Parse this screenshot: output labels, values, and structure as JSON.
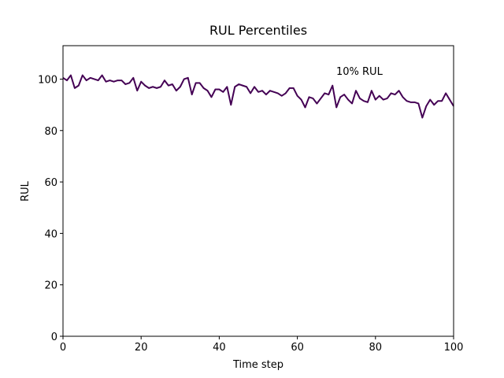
{
  "chart_data": {
    "type": "line",
    "title": "RUL Percentiles",
    "xlabel": "Time step",
    "ylabel": "RUL",
    "annotation": "10% RUL",
    "x": [
      0,
      1,
      2,
      3,
      4,
      5,
      6,
      7,
      8,
      9,
      10,
      11,
      12,
      13,
      14,
      15,
      16,
      17,
      18,
      19,
      20,
      21,
      22,
      23,
      24,
      25,
      26,
      27,
      28,
      29,
      30,
      31,
      32,
      33,
      34,
      35,
      36,
      37,
      38,
      39,
      40,
      41,
      42,
      43,
      44,
      45,
      46,
      47,
      48,
      49,
      50,
      51,
      52,
      53,
      54,
      55,
      56,
      57,
      58,
      59,
      60,
      61,
      62,
      63,
      64,
      65,
      66,
      67,
      68,
      69,
      70,
      71,
      72,
      73,
      74,
      75,
      76,
      77,
      78,
      79,
      80,
      81,
      82,
      83,
      84,
      85,
      86,
      87,
      88,
      89,
      90,
      91,
      92,
      93,
      94,
      95,
      96,
      97,
      98,
      99,
      100
    ],
    "series": [
      {
        "color": "#440154",
        "values": [
          100.5,
          99.5,
          101.5,
          96.5,
          97.5,
          101.5,
          99.5,
          100.5,
          100,
          99.5,
          101.5,
          99,
          99.5,
          99,
          99.5,
          99.5,
          98,
          98.5,
          100.5,
          95.5,
          99,
          97.5,
          96.5,
          97,
          96.5,
          97,
          99.5,
          97.5,
          98,
          95.5,
          97,
          100,
          100.5,
          94,
          98.5,
          98.5,
          96.5,
          95.5,
          93,
          96,
          96,
          95,
          97,
          90,
          97,
          98,
          97.5,
          97,
          94.5,
          97,
          95,
          95.5,
          94,
          95.5,
          95,
          94.5,
          93.5,
          94.5,
          96.5,
          96.5,
          93.5,
          92,
          89,
          93,
          92.5,
          90.5,
          92.5,
          94.5,
          94,
          97.5,
          89,
          93,
          94,
          92,
          90.5,
          95.5,
          92.5,
          91.5,
          91,
          95.5,
          92,
          93.5,
          92,
          92.5,
          94.5,
          94,
          95.5,
          93,
          91.5,
          91,
          91,
          90.5,
          85,
          89.5,
          92,
          90,
          91.5,
          91.5,
          94.5,
          92,
          89.5
        ]
      }
    ],
    "xlim": [
      0,
      100
    ],
    "ylim": [
      0,
      113
    ],
    "xticks": [
      0,
      20,
      40,
      60,
      80,
      100
    ],
    "yticks": [
      0,
      20,
      40,
      60,
      80,
      100
    ]
  }
}
